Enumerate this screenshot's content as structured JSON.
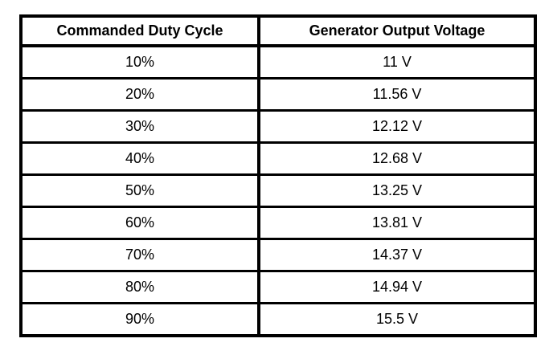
{
  "table": {
    "headers": [
      "Commanded Duty Cycle",
      "Generator Output Voltage"
    ],
    "rows": [
      [
        "10%",
        "11 V"
      ],
      [
        "20%",
        "11.56 V"
      ],
      [
        "30%",
        "12.12 V"
      ],
      [
        "40%",
        "12.68 V"
      ],
      [
        "50%",
        "13.25 V"
      ],
      [
        "60%",
        "13.81 V"
      ],
      [
        "70%",
        "14.37 V"
      ],
      [
        "80%",
        "14.94 V"
      ],
      [
        "90%",
        "15.5 V"
      ]
    ]
  },
  "chart_data": {
    "type": "table",
    "columns": [
      "Commanded Duty Cycle",
      "Generator Output Voltage"
    ],
    "rows": [
      {
        "duty_cycle_pct": 10,
        "output_voltage_v": 11
      },
      {
        "duty_cycle_pct": 20,
        "output_voltage_v": 11.56
      },
      {
        "duty_cycle_pct": 30,
        "output_voltage_v": 12.12
      },
      {
        "duty_cycle_pct": 40,
        "output_voltage_v": 12.68
      },
      {
        "duty_cycle_pct": 50,
        "output_voltage_v": 13.25
      },
      {
        "duty_cycle_pct": 60,
        "output_voltage_v": 13.81
      },
      {
        "duty_cycle_pct": 70,
        "output_voltage_v": 14.37
      },
      {
        "duty_cycle_pct": 80,
        "output_voltage_v": 14.94
      },
      {
        "duty_cycle_pct": 90,
        "output_voltage_v": 15.5
      }
    ],
    "title": "",
    "xlabel": "Commanded Duty Cycle",
    "ylabel": "Generator Output Voltage"
  }
}
